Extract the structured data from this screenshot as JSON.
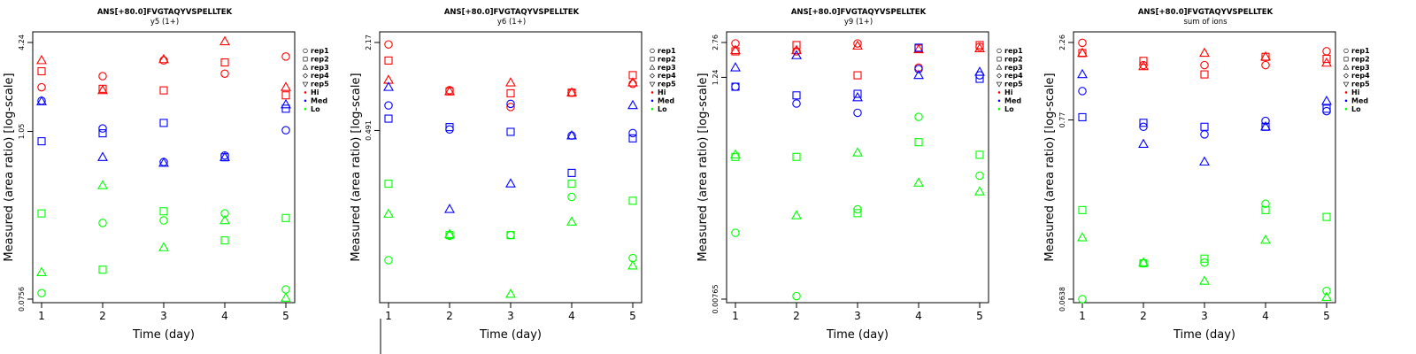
{
  "colors": {
    "Hi": "#ff0000",
    "Med": "#0000ff",
    "Lo": "#00ff00"
  },
  "legend": [
    {
      "label": "rep1",
      "shape": "circle"
    },
    {
      "label": "rep2",
      "shape": "square"
    },
    {
      "label": "rep3",
      "shape": "triangle-up"
    },
    {
      "label": "rep4",
      "shape": "diamond"
    },
    {
      "label": "rep5",
      "shape": "triangle-down"
    },
    {
      "label": "Hi",
      "shape": "dot",
      "color": "Hi"
    },
    {
      "label": "Med",
      "shape": "dot",
      "color": "Med"
    },
    {
      "label": "Lo",
      "shape": "dot",
      "color": "Lo"
    }
  ],
  "chart_data": [
    {
      "type": "scatter",
      "title": "ANS[+80.0]FVGTAQYVSPELLTEK",
      "subtitle": "y5 (1+)",
      "xlabel": "Time (day)",
      "ylabel": "Measured (area ratio) [log-scale]",
      "x_ticks": [
        1,
        2,
        3,
        4,
        5
      ],
      "y_scale": "log",
      "ylim": [
        0.0756,
        4.24
      ],
      "y_ticks": [
        0.0756,
        1.05,
        4.24
      ],
      "y_tick_labels": [
        "0.0756",
        "1.05",
        "4.24"
      ],
      "series": [
        {
          "group": "Hi",
          "replicate": "rep1",
          "points": [
            [
              1,
              2.1
            ],
            [
              2,
              2.5
            ],
            [
              3,
              3.2
            ],
            [
              4,
              2.6
            ],
            [
              5,
              3.4
            ]
          ]
        },
        {
          "group": "Hi",
          "replicate": "rep2",
          "points": [
            [
              1,
              2.7
            ],
            [
              2,
              2.05
            ],
            [
              3,
              2.0
            ],
            [
              4,
              3.1
            ],
            [
              5,
              1.85
            ]
          ]
        },
        {
          "group": "Hi",
          "replicate": "rep3",
          "points": [
            [
              1,
              3.2
            ],
            [
              2,
              2.0
            ],
            [
              3,
              3.25
            ],
            [
              4,
              4.3
            ],
            [
              5,
              2.1
            ]
          ]
        },
        {
          "group": "Med",
          "replicate": "rep1",
          "points": [
            [
              1,
              1.7
            ],
            [
              2,
              1.1
            ],
            [
              3,
              0.65
            ],
            [
              4,
              0.72
            ],
            [
              5,
              1.07
            ]
          ]
        },
        {
          "group": "Med",
          "replicate": "rep2",
          "points": [
            [
              1,
              0.9
            ],
            [
              2,
              1.02
            ],
            [
              3,
              1.2
            ],
            [
              4,
              0.7
            ],
            [
              5,
              1.5
            ]
          ]
        },
        {
          "group": "Med",
          "replicate": "rep3",
          "points": [
            [
              1,
              1.68
            ],
            [
              2,
              0.7
            ],
            [
              3,
              0.64
            ],
            [
              4,
              0.7
            ],
            [
              5,
              1.6
            ]
          ]
        },
        {
          "group": "Lo",
          "replicate": "rep1",
          "points": [
            [
              1,
              0.083
            ],
            [
              2,
              0.25
            ],
            [
              3,
              0.26
            ],
            [
              4,
              0.29
            ],
            [
              5,
              0.088
            ]
          ]
        },
        {
          "group": "Lo",
          "replicate": "rep2",
          "points": [
            [
              1,
              0.29
            ],
            [
              2,
              0.12
            ],
            [
              3,
              0.3
            ],
            [
              4,
              0.19
            ],
            [
              5,
              0.27
            ]
          ]
        },
        {
          "group": "Lo",
          "replicate": "rep3",
          "points": [
            [
              1,
              0.115
            ],
            [
              2,
              0.45
            ],
            [
              3,
              0.17
            ],
            [
              4,
              0.26
            ],
            [
              5,
              0.077
            ]
          ]
        }
      ]
    },
    {
      "type": "scatter",
      "title": "ANS[+80.0]FVGTAQYVSPELLTEK",
      "subtitle": "y6 (1+)",
      "xlabel": "Time (day)",
      "ylabel": "Measured (area ratio) [log-scale]",
      "x_ticks": [
        1,
        2,
        3,
        4,
        5
      ],
      "y_scale": "log",
      "ylim": [
        0.0285,
        2.17
      ],
      "y_ticks": [
        0.491,
        2.17
      ],
      "y_tick_labels": [
        "0.491",
        "2.17"
      ],
      "series": [
        {
          "group": "Hi",
          "replicate": "rep1",
          "points": [
            [
              1,
              2.1
            ],
            [
              2,
              0.97
            ],
            [
              3,
              0.73
            ],
            [
              4,
              0.93
            ],
            [
              5,
              1.08
            ]
          ]
        },
        {
          "group": "Hi",
          "replicate": "rep2",
          "points": [
            [
              1,
              1.6
            ],
            [
              2,
              0.95
            ],
            [
              3,
              0.92
            ],
            [
              4,
              0.93
            ],
            [
              5,
              1.25
            ]
          ]
        },
        {
          "group": "Hi",
          "replicate": "rep3",
          "points": [
            [
              1,
              1.15
            ],
            [
              2,
              0.95
            ],
            [
              3,
              1.1
            ],
            [
              4,
              0.93
            ],
            [
              5,
              1.1
            ]
          ]
        },
        {
          "group": "Med",
          "replicate": "rep1",
          "points": [
            [
              1,
              0.75
            ],
            [
              2,
              0.5
            ],
            [
              3,
              0.77
            ],
            [
              4,
              0.45
            ],
            [
              5,
              0.47
            ]
          ]
        },
        {
          "group": "Med",
          "replicate": "rep2",
          "points": [
            [
              1,
              0.6
            ],
            [
              2,
              0.52
            ],
            [
              3,
              0.48
            ],
            [
              4,
              0.24
            ],
            [
              5,
              0.43
            ]
          ]
        },
        {
          "group": "Med",
          "replicate": "rep3",
          "points": [
            [
              1,
              1.02
            ],
            [
              2,
              0.13
            ],
            [
              3,
              0.2
            ],
            [
              4,
              0.45
            ],
            [
              5,
              0.75
            ]
          ]
        },
        {
          "group": "Lo",
          "replicate": "rep1",
          "points": [
            [
              1,
              0.055
            ],
            [
              2,
              0.083
            ],
            [
              3,
              0.084
            ],
            [
              4,
              0.16
            ],
            [
              5,
              0.057
            ]
          ]
        },
        {
          "group": "Lo",
          "replicate": "rep2",
          "points": [
            [
              1,
              0.2
            ],
            [
              2,
              0.084
            ],
            [
              3,
              0.084
            ],
            [
              4,
              0.2
            ],
            [
              5,
              0.15
            ]
          ]
        },
        {
          "group": "Lo",
          "replicate": "rep3",
          "points": [
            [
              1,
              0.12
            ],
            [
              2,
              0.085
            ],
            [
              3,
              0.031
            ],
            [
              4,
              0.105
            ],
            [
              5,
              0.05
            ]
          ]
        }
      ]
    },
    {
      "type": "scatter",
      "title": "ANS[+80.0]FVGTAQYVSPELLTEK",
      "subtitle": "y9 (1+)",
      "xlabel": "Time (day)",
      "ylabel": "Measured (area ratio) [log-scale]",
      "x_ticks": [
        1,
        2,
        3,
        4,
        5
      ],
      "y_scale": "log",
      "ylim": [
        0.00765,
        2.76
      ],
      "y_ticks": [
        0.00765,
        1.24,
        2.76
      ],
      "y_tick_labels": [
        "0.00765",
        "1.24",
        "2.76"
      ],
      "series": [
        {
          "group": "Hi",
          "replicate": "rep1",
          "points": [
            [
              1,
              2.7
            ],
            [
              2,
              2.25
            ],
            [
              3,
              2.7
            ],
            [
              4,
              1.55
            ],
            [
              5,
              2.5
            ]
          ]
        },
        {
          "group": "Hi",
          "replicate": "rep2",
          "points": [
            [
              1,
              2.25
            ],
            [
              2,
              2.6
            ],
            [
              3,
              1.3
            ],
            [
              4,
              2.4
            ],
            [
              5,
              2.6
            ]
          ]
        },
        {
          "group": "Hi",
          "replicate": "rep3",
          "points": [
            [
              1,
              2.3
            ],
            [
              2,
              2.3
            ],
            [
              3,
              2.55
            ],
            [
              4,
              2.35
            ],
            [
              5,
              2.4
            ]
          ]
        },
        {
          "group": "Med",
          "replicate": "rep1",
          "points": [
            [
              1,
              1.0
            ],
            [
              2,
              0.68
            ],
            [
              3,
              0.55
            ],
            [
              4,
              1.5
            ],
            [
              5,
              1.3
            ]
          ]
        },
        {
          "group": "Med",
          "replicate": "rep2",
          "points": [
            [
              1,
              1.0
            ],
            [
              2,
              0.82
            ],
            [
              3,
              0.85
            ],
            [
              4,
              2.45
            ],
            [
              5,
              1.2
            ]
          ]
        },
        {
          "group": "Med",
          "replicate": "rep3",
          "points": [
            [
              1,
              1.55
            ],
            [
              2,
              2.05
            ],
            [
              3,
              0.78
            ],
            [
              4,
              1.3
            ],
            [
              5,
              1.4
            ]
          ]
        },
        {
          "group": "Lo",
          "replicate": "rep1",
          "points": [
            [
              1,
              0.035
            ],
            [
              2,
              0.0082
            ],
            [
              3,
              0.06
            ],
            [
              4,
              0.5
            ],
            [
              5,
              0.13
            ]
          ]
        },
        {
          "group": "Lo",
          "replicate": "rep2",
          "points": [
            [
              1,
              0.2
            ],
            [
              2,
              0.2
            ],
            [
              3,
              0.055
            ],
            [
              4,
              0.28
            ],
            [
              5,
              0.21
            ]
          ]
        },
        {
          "group": "Lo",
          "replicate": "rep3",
          "points": [
            [
              1,
              0.21
            ],
            [
              2,
              0.052
            ],
            [
              3,
              0.22
            ],
            [
              4,
              0.11
            ],
            [
              5,
              0.09
            ]
          ]
        }
      ]
    },
    {
      "type": "scatter",
      "title": "ANS[+80.0]FVGTAQYVSPELLTEK",
      "subtitle": "sum of ions",
      "xlabel": "Time (day)",
      "ylabel": "Measured (area ratio) [log-scale]",
      "x_ticks": [
        1,
        2,
        3,
        4,
        5
      ],
      "y_scale": "log",
      "ylim": [
        0.0638,
        2.26
      ],
      "y_ticks": [
        0.0638,
        0.77,
        2.26
      ],
      "y_tick_labels": [
        "0.0638",
        "0.77",
        "2.26"
      ],
      "series": [
        {
          "group": "Hi",
          "replicate": "rep1",
          "points": [
            [
              1,
              2.25
            ],
            [
              2,
              1.65
            ],
            [
              3,
              1.65
            ],
            [
              4,
              1.65
            ],
            [
              5,
              2.0
            ]
          ]
        },
        {
          "group": "Hi",
          "replicate": "rep2",
          "points": [
            [
              1,
              1.95
            ],
            [
              2,
              1.75
            ],
            [
              3,
              1.45
            ],
            [
              4,
              1.85
            ],
            [
              5,
              1.8
            ]
          ]
        },
        {
          "group": "Hi",
          "replicate": "rep3",
          "points": [
            [
              1,
              1.95
            ],
            [
              2,
              1.62
            ],
            [
              3,
              1.95
            ],
            [
              4,
              1.85
            ],
            [
              5,
              1.7
            ]
          ]
        },
        {
          "group": "Med",
          "replicate": "rep1",
          "points": [
            [
              1,
              1.15
            ],
            [
              2,
              0.7
            ],
            [
              3,
              0.63
            ],
            [
              4,
              0.76
            ],
            [
              5,
              0.87
            ]
          ]
        },
        {
          "group": "Med",
          "replicate": "rep2",
          "points": [
            [
              1,
              0.8
            ],
            [
              2,
              0.74
            ],
            [
              3,
              0.7
            ],
            [
              4,
              0.7
            ],
            [
              5,
              0.9
            ]
          ]
        },
        {
          "group": "Med",
          "replicate": "rep3",
          "points": [
            [
              1,
              1.45
            ],
            [
              2,
              0.55
            ],
            [
              3,
              0.43
            ],
            [
              4,
              0.7
            ],
            [
              5,
              1.0
            ]
          ]
        },
        {
          "group": "Lo",
          "replicate": "rep1",
          "points": [
            [
              1,
              0.0638
            ],
            [
              2,
              0.105
            ],
            [
              3,
              0.106
            ],
            [
              4,
              0.24
            ],
            [
              5,
              0.0715
            ]
          ]
        },
        {
          "group": "Lo",
          "replicate": "rep2",
          "points": [
            [
              1,
              0.22
            ],
            [
              2,
              0.105
            ],
            [
              3,
              0.112
            ],
            [
              4,
              0.22
            ],
            [
              5,
              0.2
            ]
          ]
        },
        {
          "group": "Lo",
          "replicate": "rep3",
          "points": [
            [
              1,
              0.15
            ],
            [
              2,
              0.106
            ],
            [
              3,
              0.082
            ],
            [
              4,
              0.145
            ],
            [
              5,
              0.0655
            ]
          ]
        }
      ]
    }
  ]
}
